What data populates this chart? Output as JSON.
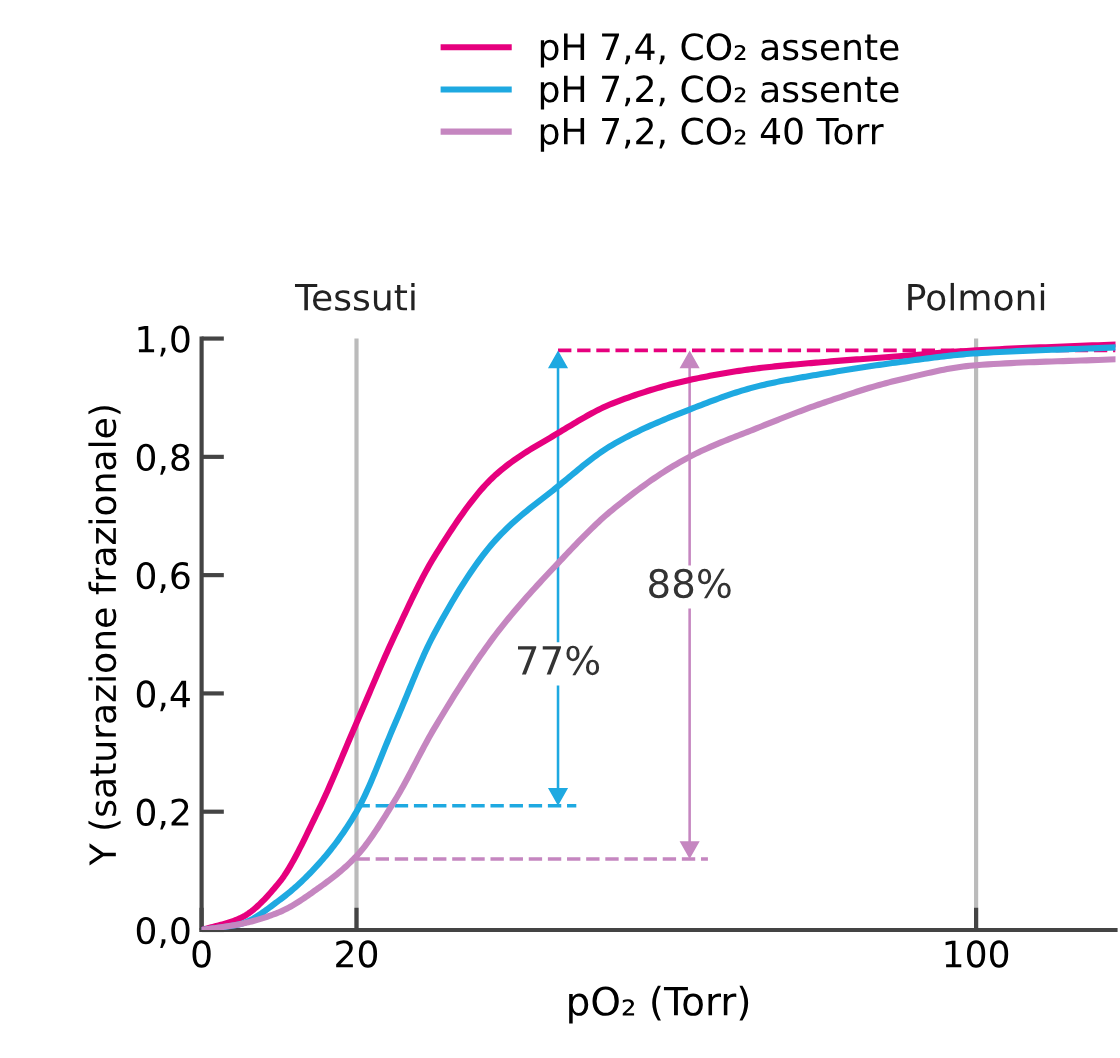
{
  "chart_data": {
    "type": "line",
    "xlabel": "pO₂ (Torr)",
    "ylabel": "Y (saturazione frazionale)",
    "series": [
      {
        "name": "pH 7,4, CO₂ assente",
        "color": "#e6007e",
        "x": [
          0,
          5,
          10,
          15,
          20,
          25,
          30,
          38,
          46,
          53,
          63,
          72,
          80,
          90,
          100,
          118
        ],
        "values": [
          0,
          0.02,
          0.08,
          0.2,
          0.35,
          0.5,
          0.63,
          0.77,
          0.84,
          0.89,
          0.93,
          0.95,
          0.96,
          0.97,
          0.98,
          0.99
        ]
      },
      {
        "name": "pH 7,2, CO₂ assente",
        "color": "#1ea9e1",
        "x": [
          0,
          5,
          10,
          15,
          20,
          25,
          30,
          38,
          46,
          53,
          63,
          72,
          80,
          90,
          100,
          118
        ],
        "values": [
          0,
          0.01,
          0.05,
          0.11,
          0.2,
          0.35,
          0.5,
          0.66,
          0.75,
          0.82,
          0.88,
          0.92,
          0.94,
          0.96,
          0.975,
          0.985
        ]
      },
      {
        "name": "pH 7,2, CO₂ 40 Torr",
        "color": "#c586c0",
        "x": [
          0,
          5,
          10,
          15,
          20,
          25,
          30,
          38,
          46,
          53,
          63,
          72,
          80,
          90,
          100,
          118
        ],
        "values": [
          0,
          0.01,
          0.03,
          0.07,
          0.125,
          0.22,
          0.34,
          0.5,
          0.62,
          0.71,
          0.8,
          0.85,
          0.89,
          0.93,
          0.955,
          0.965
        ]
      }
    ],
    "xlim": [
      0,
      118
    ],
    "xticks": [
      0,
      20,
      100
    ],
    "ylim": [
      0,
      1.0
    ],
    "yticks": [
      {
        "value": 0,
        "label": "0,0"
      },
      {
        "value": 0.2,
        "label": "0,2"
      },
      {
        "value": 0.4,
        "label": "0,4"
      },
      {
        "value": 0.6,
        "label": "0,6"
      },
      {
        "value": 0.8,
        "label": "0,8"
      },
      {
        "value": 1.0,
        "label": "1,0"
      }
    ],
    "ref_lines": [
      {
        "axis": "x",
        "value": 20,
        "label": "Tessuti",
        "color": "#bbbbbb"
      },
      {
        "axis": "x",
        "value": 100,
        "label": "Polmoni",
        "color": "#bbbbbb"
      },
      {
        "axis": "y",
        "value": 0.98,
        "color": "#e6007e",
        "line_style": "dashed"
      },
      {
        "axis": "y",
        "value": 0.21,
        "color": "#1ea9e1",
        "line_style": "dashed"
      },
      {
        "axis": "y",
        "value": 0.12,
        "color": "#c586c0",
        "line_style": "dashed"
      }
    ],
    "annotations": [
      "77%",
      "88%"
    ],
    "legend": "top",
    "grid": false,
    "marker": "none",
    "line_style": "solid"
  }
}
